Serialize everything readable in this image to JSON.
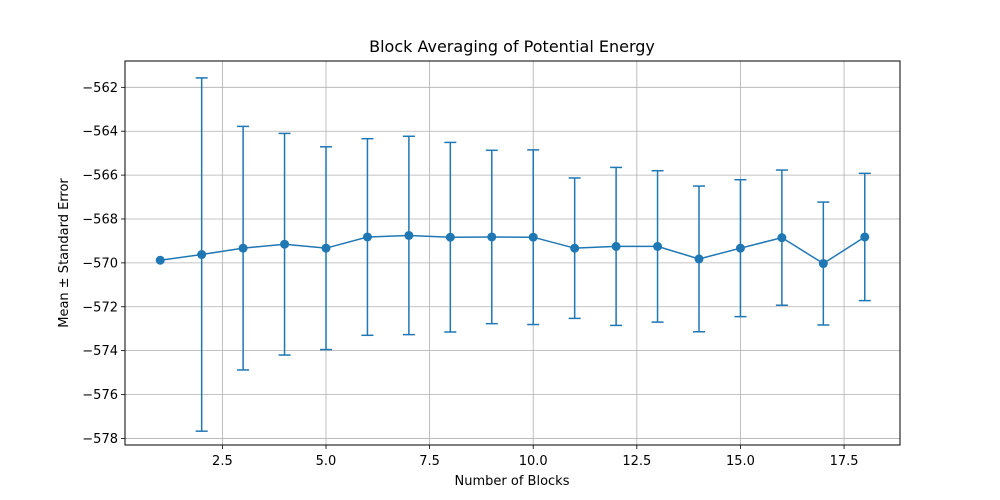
{
  "chart_data": {
    "type": "line",
    "title": "Block Averaging of Potential Energy",
    "xlabel": "Number of Blocks",
    "ylabel": "Mean ± Standard Error",
    "xlim": [
      0.15,
      18.85
    ],
    "ylim": [
      -578.3,
      -560.8
    ],
    "xticks": [
      2.5,
      5.0,
      7.5,
      10.0,
      12.5,
      15.0,
      17.5
    ],
    "xtick_labels": [
      "2.5",
      "5.0",
      "7.5",
      "10.0",
      "12.5",
      "15.0",
      "17.5"
    ],
    "yticks": [
      -562,
      -564,
      -566,
      -568,
      -570,
      -572,
      -574,
      -576,
      -578
    ],
    "ytick_labels": [
      "−562",
      "−564",
      "−566",
      "−568",
      "−570",
      "−572",
      "−574",
      "−576",
      "−578"
    ],
    "grid": true,
    "color": "#1f77b4",
    "series": [
      {
        "x": [
          1,
          2,
          3,
          4,
          5,
          6,
          7,
          8,
          9,
          10,
          11,
          12,
          13,
          14,
          15,
          16,
          17,
          18
        ],
        "y": [
          -569.88,
          -569.62,
          -569.33,
          -569.15,
          -569.33,
          -568.82,
          -568.75,
          -568.83,
          -568.82,
          -568.83,
          -569.33,
          -569.25,
          -569.25,
          -569.82,
          -569.33,
          -568.85,
          -570.03,
          -568.82
        ],
        "yerr": [
          0,
          8.05,
          5.55,
          5.05,
          4.62,
          4.48,
          4.52,
          4.32,
          3.95,
          3.98,
          3.2,
          3.6,
          3.45,
          3.32,
          3.12,
          3.08,
          2.8,
          2.9
        ]
      }
    ]
  }
}
